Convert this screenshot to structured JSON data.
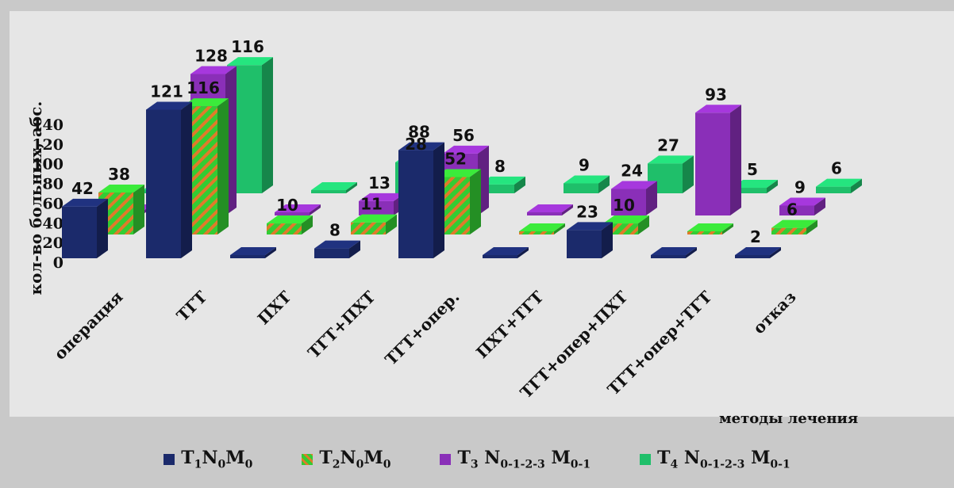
{
  "chart_data": {
    "type": "bar",
    "title": "",
    "ylabel": "кол-во больных, абс.",
    "xlabel": "методы лечения",
    "ylim": [
      0,
      140
    ],
    "yticks": [
      "0",
      "20",
      "40",
      "60",
      "80",
      "100",
      "120",
      "140"
    ],
    "categories": [
      "операция",
      "ТГТ",
      "ПХТ",
      "ТГТ+ПХТ",
      "ТГТ+опер.",
      "ПХТ+ТГТ",
      "ТГТ+опер+ПХТ",
      "ТГТ+опер+ТГТ",
      "отказ"
    ],
    "series": [
      {
        "name": "T1N0M0",
        "color": "#1b2a6b",
        "values": [
          42,
          121,
          0,
          8,
          88,
          0,
          23,
          0,
          2
        ]
      },
      {
        "name": "T2N0M0",
        "color": "#33cc33",
        "stripe": "#e07a2a",
        "values": [
          38,
          116,
          10,
          11,
          52,
          0,
          10,
          0,
          6
        ]
      },
      {
        "name": "T3N0-1-2-3M0-1",
        "color": "#8a2fb8",
        "values": [
          0,
          128,
          0,
          13,
          56,
          0,
          24,
          93,
          9
        ]
      },
      {
        "name": "T4N0-1-2-3M0-1",
        "color": "#1fbf6a",
        "values": [
          0,
          116,
          0,
          28,
          8,
          9,
          27,
          5,
          6
        ]
      }
    ],
    "grid": false,
    "legend_position": "bottom"
  },
  "legend": [
    {
      "main1": "T",
      "sub1": "1",
      "main2": "N",
      "sub2": "0",
      "main3": "M",
      "sub3": "0"
    },
    {
      "main1": "T",
      "sub1": "2",
      "main2": "N",
      "sub2": "0",
      "main3": "M",
      "sub3": "0"
    },
    {
      "main1": "T",
      "sub1": "3",
      "main2": " N",
      "sub2": "0-1-2-3",
      "main3": " M",
      "sub3": "0-1"
    },
    {
      "main1": "T",
      "sub1": "4",
      "main2": " N",
      "sub2": "0-1-2-3",
      "main3": " M",
      "sub3": "0-1"
    }
  ]
}
